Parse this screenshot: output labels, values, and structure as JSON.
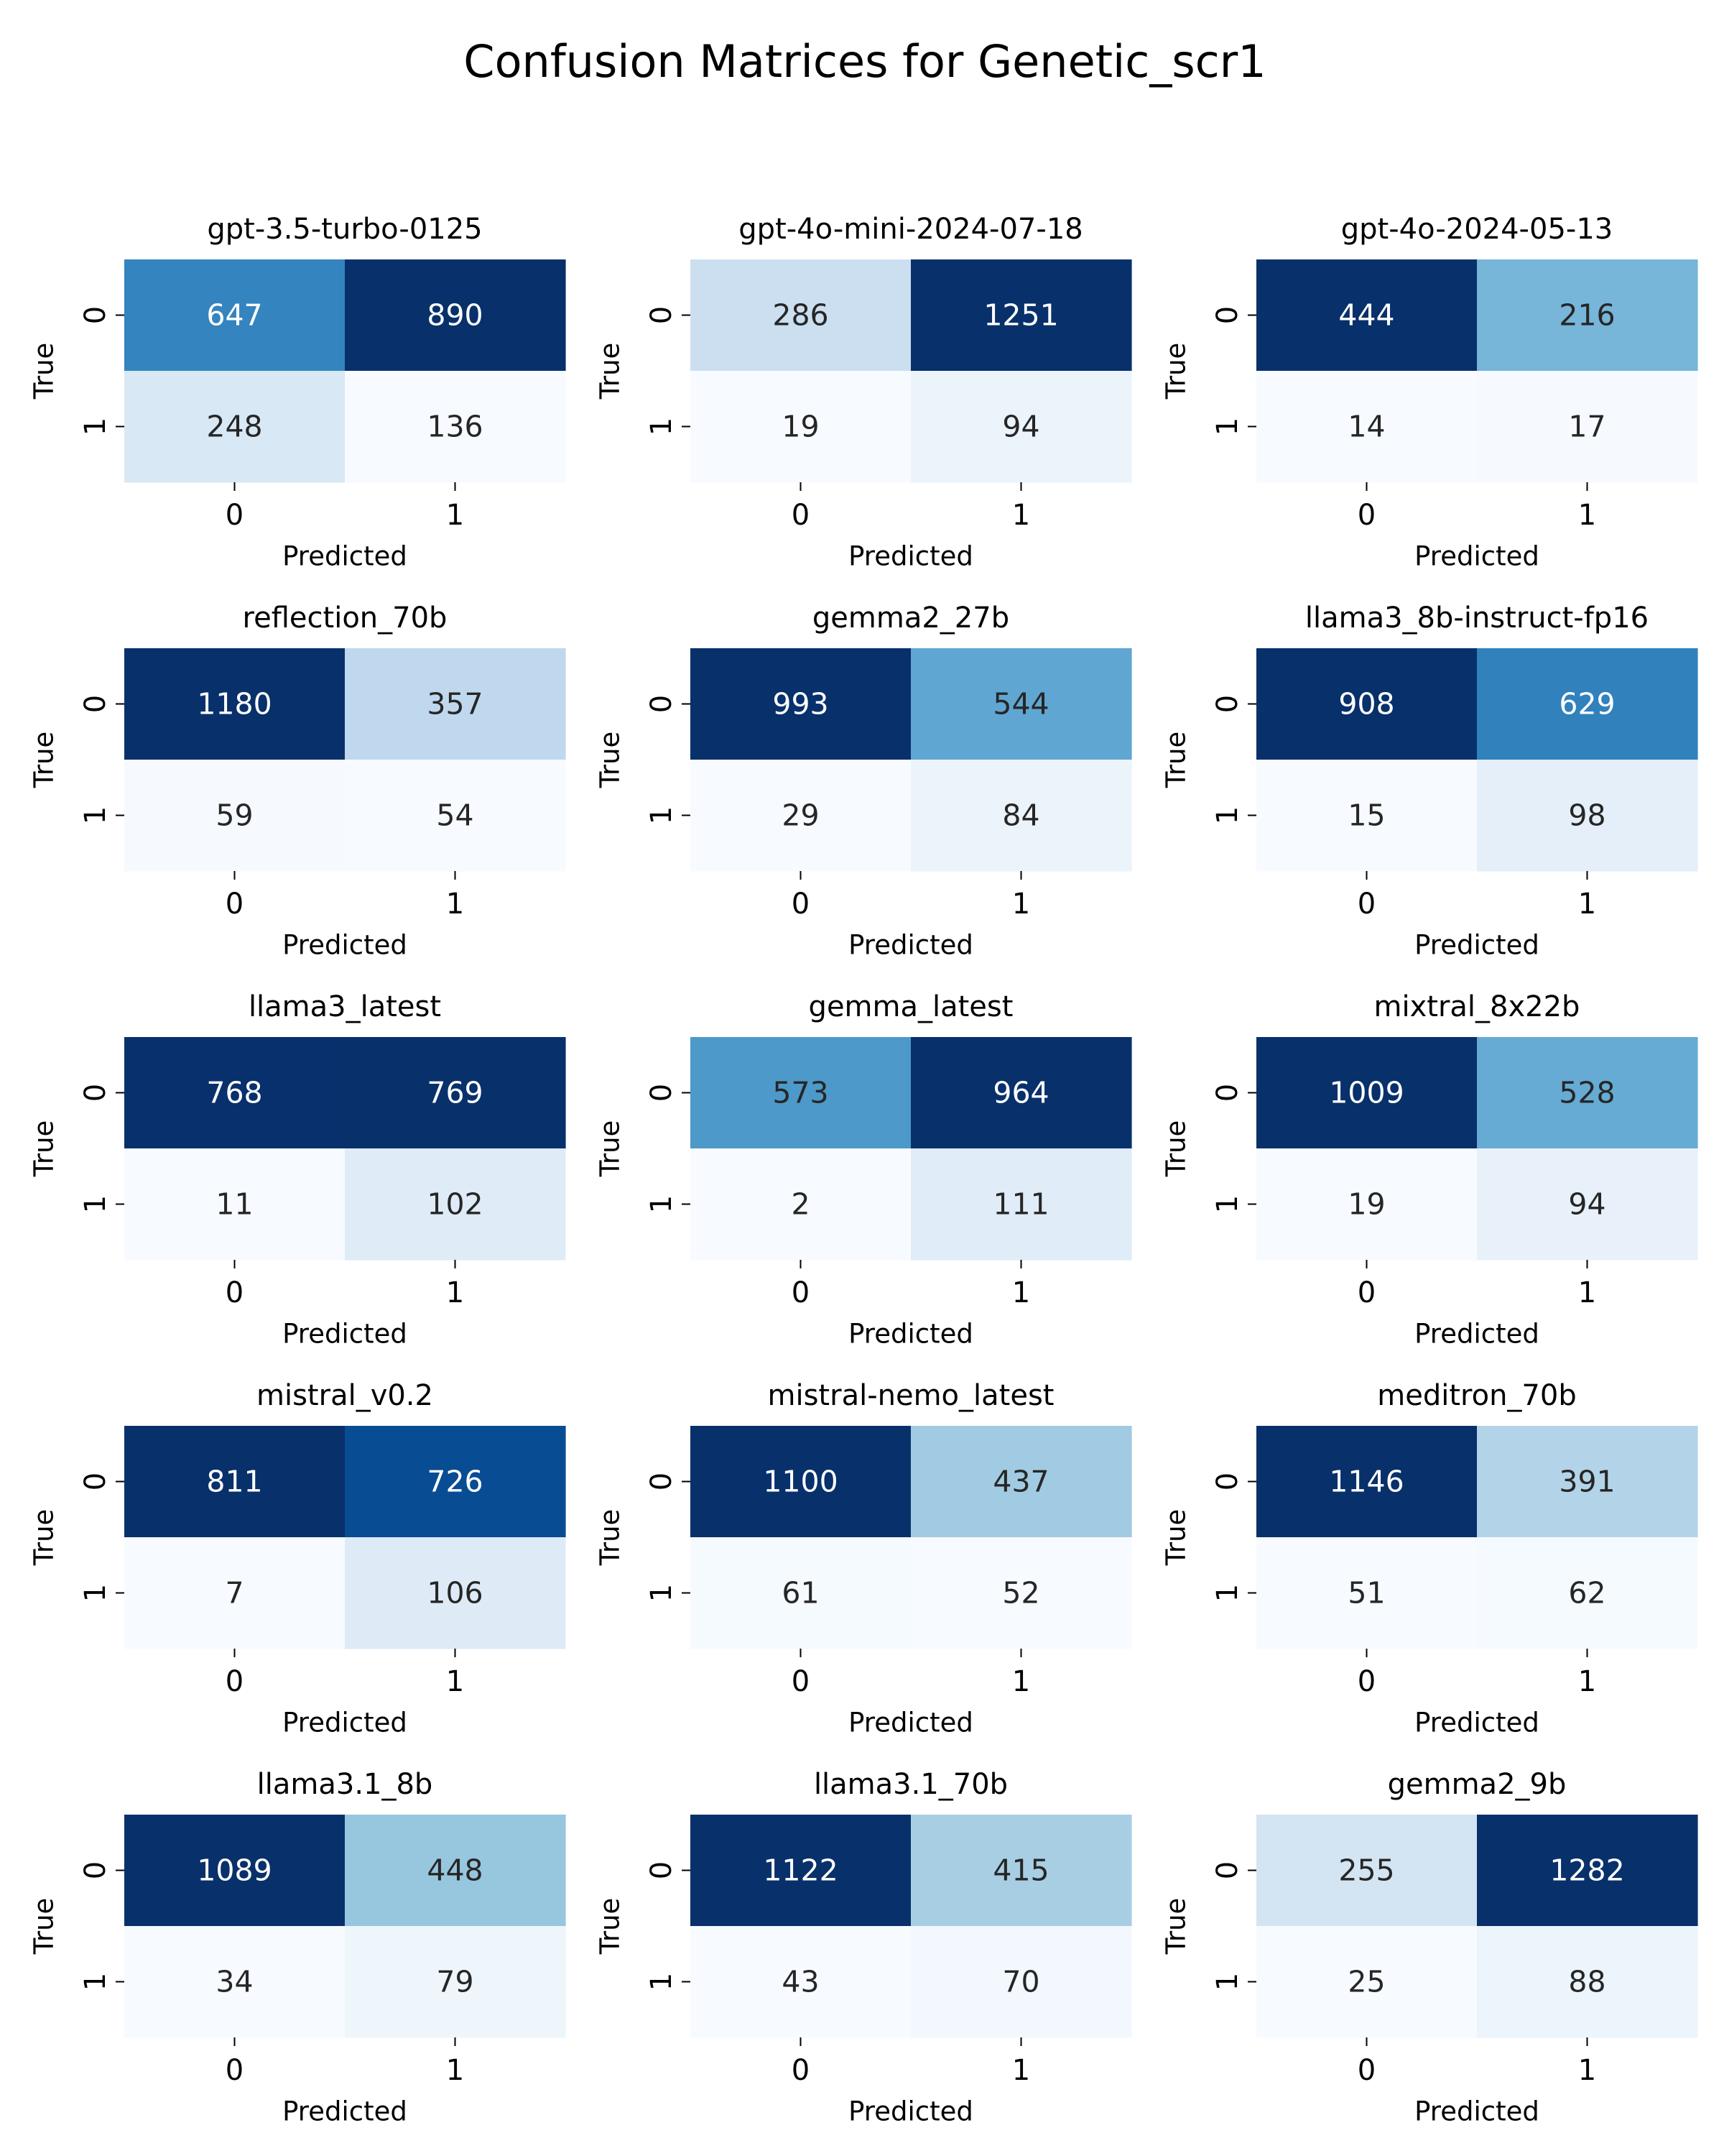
{
  "figure": {
    "title": "Confusion Matrices for Genetic_scr1"
  },
  "chart_data": [
    {
      "type": "heatmap",
      "title": "gpt-3.5-turbo-0125",
      "xlabel": "Predicted",
      "ylabel": "True",
      "x_ticks": [
        "0",
        "1"
      ],
      "y_ticks": [
        "0",
        "1"
      ],
      "colormap": "Blues",
      "values": [
        [
          647,
          890
        ],
        [
          248,
          136
        ]
      ]
    },
    {
      "type": "heatmap",
      "title": "gpt-4o-mini-2024-07-18",
      "xlabel": "Predicted",
      "ylabel": "True",
      "x_ticks": [
        "0",
        "1"
      ],
      "y_ticks": [
        "0",
        "1"
      ],
      "colormap": "Blues",
      "values": [
        [
          286,
          1251
        ],
        [
          19,
          94
        ]
      ]
    },
    {
      "type": "heatmap",
      "title": "gpt-4o-2024-05-13",
      "xlabel": "Predicted",
      "ylabel": "True",
      "x_ticks": [
        "0",
        "1"
      ],
      "y_ticks": [
        "0",
        "1"
      ],
      "colormap": "Blues",
      "values": [
        [
          444,
          216
        ],
        [
          14,
          17
        ]
      ]
    },
    {
      "type": "heatmap",
      "title": "reflection_70b",
      "xlabel": "Predicted",
      "ylabel": "True",
      "x_ticks": [
        "0",
        "1"
      ],
      "y_ticks": [
        "0",
        "1"
      ],
      "colormap": "Blues",
      "values": [
        [
          1180,
          357
        ],
        [
          59,
          54
        ]
      ]
    },
    {
      "type": "heatmap",
      "title": "gemma2_27b",
      "xlabel": "Predicted",
      "ylabel": "True",
      "x_ticks": [
        "0",
        "1"
      ],
      "y_ticks": [
        "0",
        "1"
      ],
      "colormap": "Blues",
      "values": [
        [
          993,
          544
        ],
        [
          29,
          84
        ]
      ]
    },
    {
      "type": "heatmap",
      "title": "llama3_8b-instruct-fp16",
      "xlabel": "Predicted",
      "ylabel": "True",
      "x_ticks": [
        "0",
        "1"
      ],
      "y_ticks": [
        "0",
        "1"
      ],
      "colormap": "Blues",
      "values": [
        [
          908,
          629
        ],
        [
          15,
          98
        ]
      ]
    },
    {
      "type": "heatmap",
      "title": "llama3_latest",
      "xlabel": "Predicted",
      "ylabel": "True",
      "x_ticks": [
        "0",
        "1"
      ],
      "y_ticks": [
        "0",
        "1"
      ],
      "colormap": "Blues",
      "values": [
        [
          768,
          769
        ],
        [
          11,
          102
        ]
      ]
    },
    {
      "type": "heatmap",
      "title": "gemma_latest",
      "xlabel": "Predicted",
      "ylabel": "True",
      "x_ticks": [
        "0",
        "1"
      ],
      "y_ticks": [
        "0",
        "1"
      ],
      "colormap": "Blues",
      "values": [
        [
          573,
          964
        ],
        [
          2,
          111
        ]
      ]
    },
    {
      "type": "heatmap",
      "title": "mixtral_8x22b",
      "xlabel": "Predicted",
      "ylabel": "True",
      "x_ticks": [
        "0",
        "1"
      ],
      "y_ticks": [
        "0",
        "1"
      ],
      "colormap": "Blues",
      "values": [
        [
          1009,
          528
        ],
        [
          19,
          94
        ]
      ]
    },
    {
      "type": "heatmap",
      "title": "mistral_v0.2",
      "xlabel": "Predicted",
      "ylabel": "True",
      "x_ticks": [
        "0",
        "1"
      ],
      "y_ticks": [
        "0",
        "1"
      ],
      "colormap": "Blues",
      "values": [
        [
          811,
          726
        ],
        [
          7,
          106
        ]
      ]
    },
    {
      "type": "heatmap",
      "title": "mistral-nemo_latest",
      "xlabel": "Predicted",
      "ylabel": "True",
      "x_ticks": [
        "0",
        "1"
      ],
      "y_ticks": [
        "0",
        "1"
      ],
      "colormap": "Blues",
      "values": [
        [
          1100,
          437
        ],
        [
          61,
          52
        ]
      ]
    },
    {
      "type": "heatmap",
      "title": "meditron_70b",
      "xlabel": "Predicted",
      "ylabel": "True",
      "x_ticks": [
        "0",
        "1"
      ],
      "y_ticks": [
        "0",
        "1"
      ],
      "colormap": "Blues",
      "values": [
        [
          1146,
          391
        ],
        [
          51,
          62
        ]
      ]
    },
    {
      "type": "heatmap",
      "title": "llama3.1_8b",
      "xlabel": "Predicted",
      "ylabel": "True",
      "x_ticks": [
        "0",
        "1"
      ],
      "y_ticks": [
        "0",
        "1"
      ],
      "colormap": "Blues",
      "values": [
        [
          1089,
          448
        ],
        [
          34,
          79
        ]
      ]
    },
    {
      "type": "heatmap",
      "title": "llama3.1_70b",
      "xlabel": "Predicted",
      "ylabel": "True",
      "x_ticks": [
        "0",
        "1"
      ],
      "y_ticks": [
        "0",
        "1"
      ],
      "colormap": "Blues",
      "values": [
        [
          1122,
          415
        ],
        [
          43,
          70
        ]
      ]
    },
    {
      "type": "heatmap",
      "title": "gemma2_9b",
      "xlabel": "Predicted",
      "ylabel": "True",
      "x_ticks": [
        "0",
        "1"
      ],
      "y_ticks": [
        "0",
        "1"
      ],
      "colormap": "Blues",
      "values": [
        [
          255,
          1282
        ],
        [
          25,
          88
        ]
      ]
    }
  ]
}
